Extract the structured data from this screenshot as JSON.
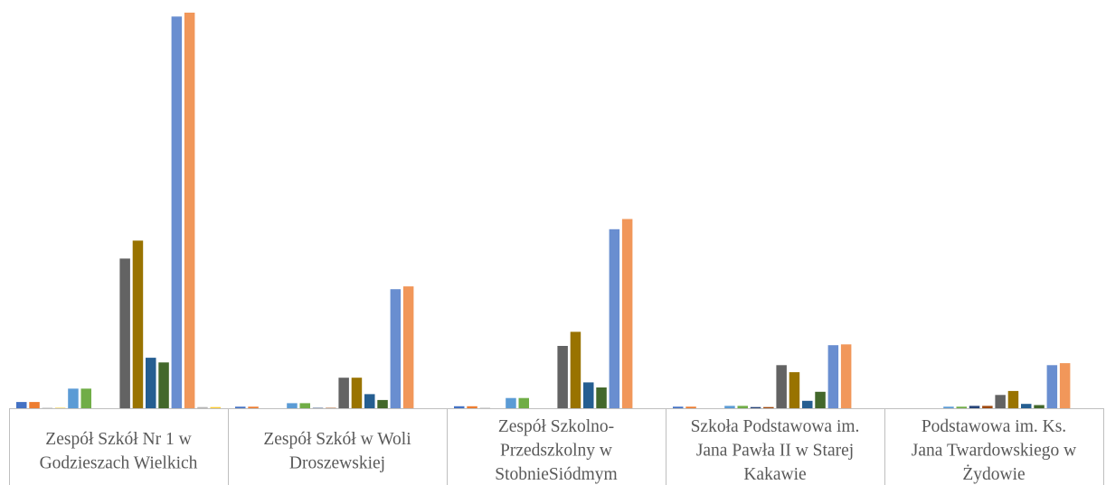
{
  "chart_data": {
    "type": "bar",
    "categories": [
      [
        "Zespół Szkół Nr 1 w",
        "Godzieszach Wielkich"
      ],
      [
        "Zespół Szkół w Woli",
        "Droszewskiej"
      ],
      [
        "Zespół Szkolno-",
        "Przedszkolny w",
        "StobnieSiódmym"
      ],
      [
        "Szkoła Podstawowa im.",
        "Jana Pawła II w Starej",
        "Kakawie"
      ],
      [
        "Podstawowa im. Ks.",
        "Jana Twardowskiego w",
        "Żydowie"
      ]
    ],
    "series": [
      {
        "color": "#4472C4",
        "values": [
          1.6,
          0.4,
          0.5,
          0.4,
          0.0
        ]
      },
      {
        "color": "#ED7D31",
        "values": [
          1.6,
          0.4,
          0.5,
          0.4,
          0.0
        ]
      },
      {
        "color": "#A5A5A5",
        "values": [
          0.1,
          0.0,
          0.1,
          0.0,
          0.0
        ]
      },
      {
        "color": "#FFC000",
        "values": [
          0.1,
          0.0,
          0.0,
          0.0,
          0.0
        ]
      },
      {
        "color": "#5B9BD5",
        "values": [
          5.0,
          1.3,
          2.6,
          0.6,
          0.4
        ]
      },
      {
        "color": "#70AD47",
        "values": [
          5.0,
          1.3,
          2.6,
          0.6,
          0.4
        ]
      },
      {
        "color": "#264478",
        "values": [
          0.0,
          0.1,
          0.0,
          0.3,
          0.6
        ]
      },
      {
        "color": "#9E480E",
        "values": [
          0.0,
          0.1,
          0.0,
          0.3,
          0.6
        ]
      },
      {
        "color": "#636363",
        "values": [
          38.2,
          7.8,
          15.9,
          11.0,
          3.4
        ]
      },
      {
        "color": "#997300",
        "values": [
          42.8,
          7.8,
          19.5,
          9.2,
          4.4
        ]
      },
      {
        "color": "#255E91",
        "values": [
          12.9,
          3.6,
          6.6,
          1.9,
          1.1
        ]
      },
      {
        "color": "#43682B",
        "values": [
          11.7,
          2.1,
          5.3,
          4.2,
          0.8
        ]
      },
      {
        "color": "#698ED0",
        "values": [
          100.0,
          30.4,
          45.7,
          16.1,
          11.0
        ]
      },
      {
        "color": "#F1975A",
        "values": [
          101.0,
          31.1,
          48.3,
          16.3,
          11.5
        ]
      },
      {
        "color": "#B7B7B7",
        "values": [
          0.3,
          0.0,
          0.0,
          0.0,
          0.0
        ]
      },
      {
        "color": "#FFCD33",
        "values": [
          0.3,
          0.0,
          0.0,
          0.0,
          0.0
        ]
      }
    ],
    "ylim": [
      0,
      101
    ],
    "grid": false,
    "legend": "none",
    "axis_color": "#BFBFBF"
  }
}
